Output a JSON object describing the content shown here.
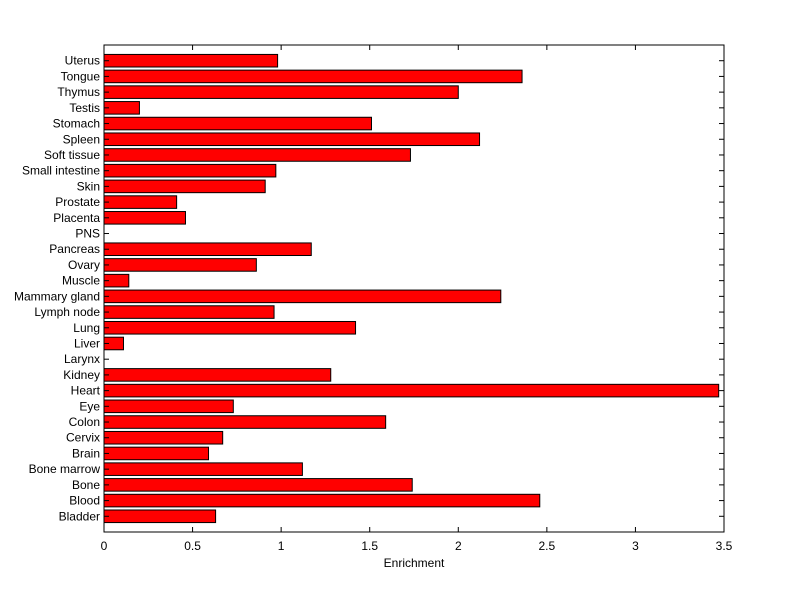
{
  "chart_data": {
    "type": "bar",
    "orientation": "horizontal",
    "categories": [
      "Bladder",
      "Blood",
      "Bone",
      "Bone marrow",
      "Brain",
      "Cervix",
      "Colon",
      "Eye",
      "Heart",
      "Kidney",
      "Larynx",
      "Liver",
      "Lung",
      "Lymph node",
      "Mammary gland",
      "Muscle",
      "Ovary",
      "Pancreas",
      "PNS",
      "Placenta",
      "Prostate",
      "Skin",
      "Small intestine",
      "Soft tissue",
      "Spleen",
      "Stomach",
      "Testis",
      "Thymus",
      "Tongue",
      "Uterus"
    ],
    "values": [
      0.63,
      2.46,
      1.74,
      1.12,
      0.59,
      0.67,
      1.59,
      0.73,
      3.47,
      1.28,
      0.0,
      0.11,
      1.42,
      0.96,
      2.24,
      0.14,
      0.86,
      1.17,
      0.0,
      0.46,
      0.41,
      0.91,
      0.97,
      1.73,
      2.12,
      1.51,
      0.2,
      2.0,
      2.36,
      0.98
    ],
    "xlabel": "Enrichment",
    "ylabel": "",
    "title": "",
    "xlim": [
      0,
      3.5
    ],
    "xticks": [
      "0",
      "0.5",
      "1",
      "1.5",
      "2",
      "2.5",
      "3",
      "3.5"
    ],
    "bar_color": "#ff0000",
    "grid": false
  }
}
